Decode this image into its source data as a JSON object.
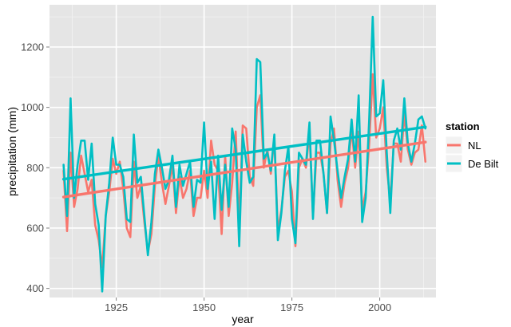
{
  "chart_data": {
    "type": "line",
    "title": "",
    "xlabel": "year",
    "ylabel": "precipitation (mm)",
    "xlim": [
      1906,
      2016
    ],
    "ylim": [
      370,
      1340
    ],
    "x_ticks": [
      1925,
      1950,
      1975,
      2000
    ],
    "y_ticks": [
      400,
      600,
      800,
      1000,
      1200
    ],
    "grid": true,
    "legend": {
      "title": "station",
      "position": "right"
    },
    "x": [
      1910,
      1911,
      1912,
      1913,
      1914,
      1915,
      1916,
      1917,
      1918,
      1919,
      1920,
      1921,
      1922,
      1923,
      1924,
      1925,
      1926,
      1927,
      1928,
      1929,
      1930,
      1931,
      1932,
      1933,
      1934,
      1935,
      1936,
      1937,
      1938,
      1939,
      1940,
      1941,
      1942,
      1943,
      1944,
      1945,
      1946,
      1947,
      1948,
      1949,
      1950,
      1951,
      1952,
      1953,
      1954,
      1955,
      1956,
      1957,
      1958,
      1959,
      1960,
      1961,
      1962,
      1963,
      1964,
      1965,
      1966,
      1967,
      1968,
      1969,
      1970,
      1971,
      1972,
      1973,
      1974,
      1975,
      1976,
      1977,
      1978,
      1979,
      1980,
      1981,
      1982,
      1983,
      1984,
      1985,
      1986,
      1987,
      1988,
      1989,
      1990,
      1991,
      1992,
      1993,
      1994,
      1995,
      1996,
      1997,
      1998,
      1999,
      2000,
      2001,
      2002,
      2003,
      2004,
      2005,
      2006,
      2007,
      2008,
      2009,
      2010,
      2011,
      2012,
      2013
    ],
    "series": [
      {
        "name": "NL",
        "color": "#f8766d",
        "values": [
          790,
          590,
          850,
          670,
          730,
          840,
          780,
          720,
          760,
          610,
          560,
          470,
          640,
          720,
          830,
          780,
          820,
          730,
          600,
          570,
          820,
          700,
          740,
          620,
          520,
          580,
          740,
          840,
          750,
          680,
          740,
          810,
          650,
          770,
          700,
          730,
          790,
          640,
          700,
          700,
          790,
          700,
          890,
          810,
          790,
          580,
          840,
          640,
          750,
          920,
          610,
          940,
          930,
          770,
          740,
          1000,
          1040,
          800,
          860,
          780,
          900,
          590,
          660,
          770,
          790,
          720,
          540,
          800,
          830,
          800,
          920,
          640,
          850,
          850,
          780,
          650,
          880,
          930,
          760,
          670,
          750,
          800,
          930,
          800,
          920,
          660,
          720,
          880,
          1110,
          900,
          930,
          1000,
          800,
          690,
          880,
          880,
          820,
          980,
          860,
          810,
          850,
          860,
          940,
          820
        ],
        "trend": [
          703,
          885
        ]
      },
      {
        "name": "De Bilt",
        "color": "#00bfc4",
        "values": [
          810,
          640,
          1030,
          700,
          810,
          890,
          890,
          760,
          880,
          680,
          610,
          390,
          640,
          750,
          900,
          810,
          810,
          770,
          630,
          620,
          910,
          750,
          770,
          640,
          510,
          620,
          780,
          860,
          800,
          730,
          760,
          840,
          670,
          810,
          740,
          780,
          820,
          670,
          760,
          750,
          950,
          730,
          820,
          630,
          840,
          660,
          810,
          670,
          930,
          860,
          540,
          910,
          820,
          750,
          770,
          1160,
          1150,
          830,
          850,
          790,
          910,
          560,
          650,
          790,
          870,
          630,
          550,
          850,
          830,
          810,
          950,
          630,
          890,
          890,
          780,
          650,
          970,
          890,
          790,
          700,
          770,
          830,
          960,
          820,
          1040,
          620,
          700,
          960,
          1300,
          970,
          980,
          1090,
          850,
          650,
          890,
          930,
          860,
          1030,
          880,
          820,
          880,
          960,
          970,
          930
        ],
        "trend": [
          762,
          935
        ]
      }
    ]
  }
}
